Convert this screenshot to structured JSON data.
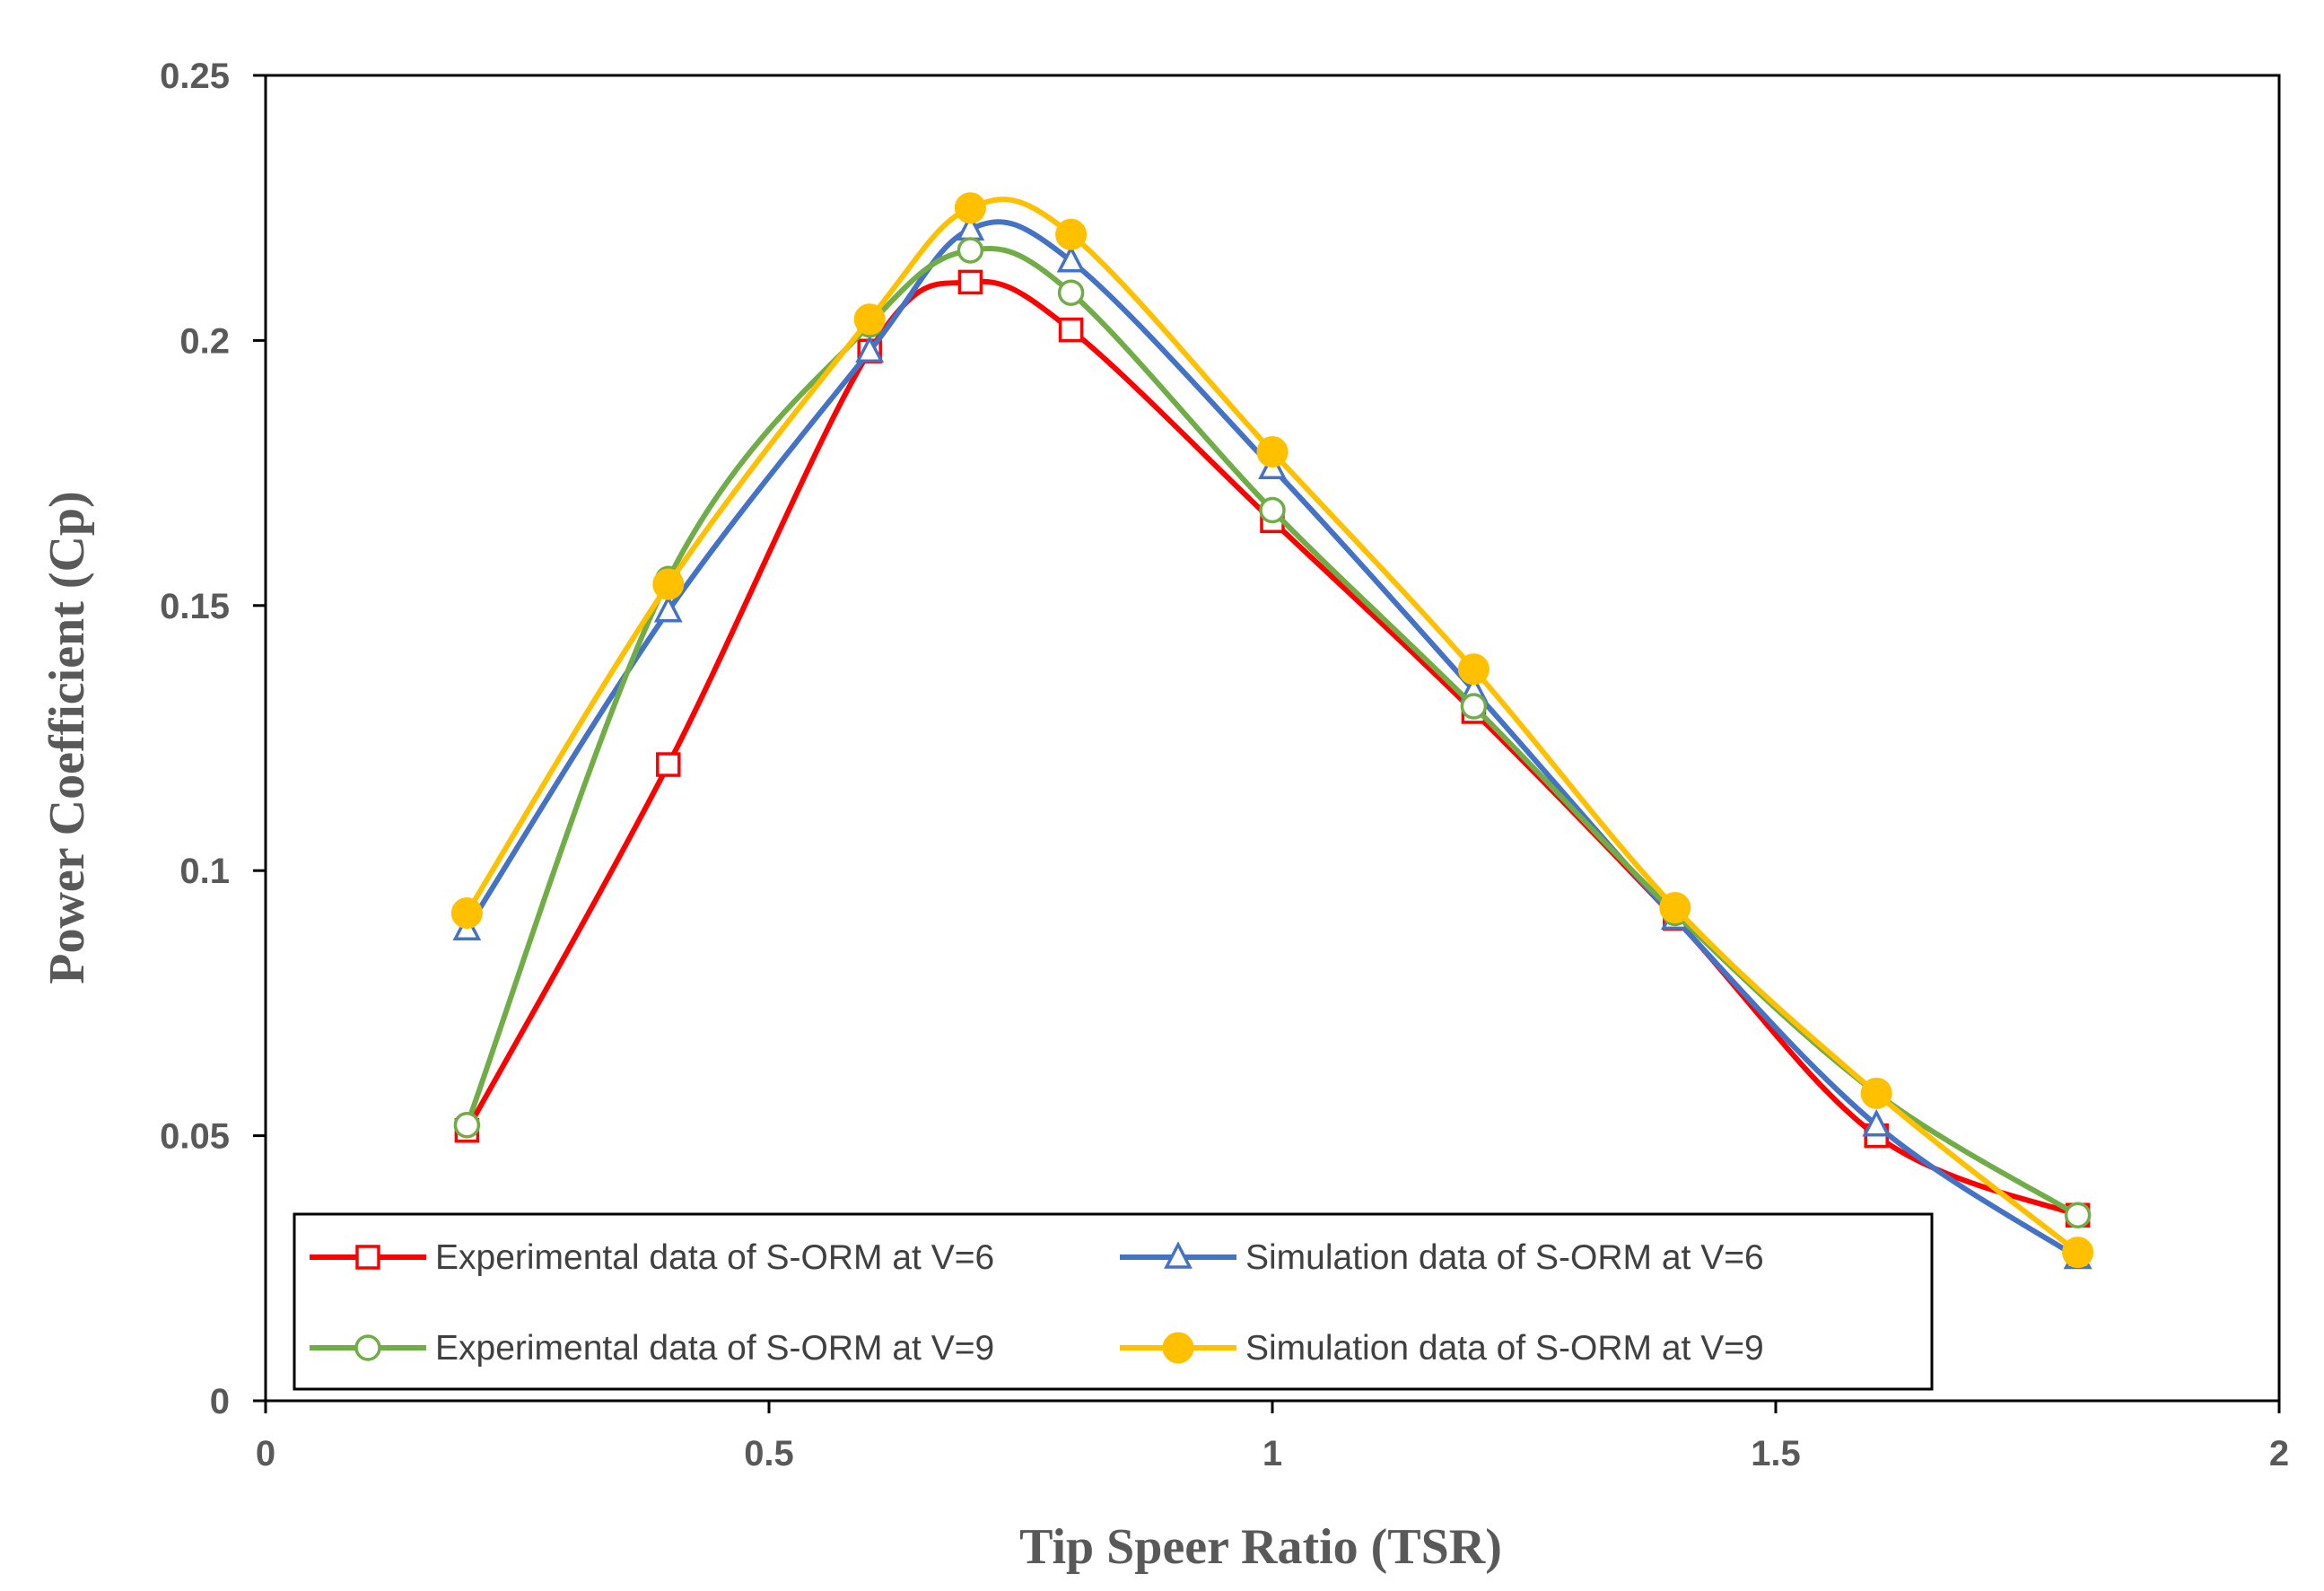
{
  "chart_data": {
    "type": "line",
    "smooth": true,
    "title": "",
    "xlabel": "Tip Speer Ratio (TSR)",
    "ylabel": "Power Coefficient (Cp)",
    "xlim": [
      0,
      2
    ],
    "ylim": [
      0,
      0.25
    ],
    "x_ticks": [
      0,
      0.5,
      1,
      1.5,
      2
    ],
    "x_tick_labels": [
      "0",
      "0.5",
      "1",
      "1.5",
      "2"
    ],
    "y_ticks": [
      0,
      0.05,
      0.1,
      0.15,
      0.2,
      0.25
    ],
    "y_tick_labels": [
      "0",
      "0.05",
      "0.1",
      "0.15",
      "0.2",
      "0.25"
    ],
    "grid": false,
    "legend_position": "bottom-inside",
    "x": [
      0.2,
      0.4,
      0.6,
      0.7,
      0.8,
      1.0,
      1.2,
      1.4,
      1.6,
      1.8
    ],
    "series": [
      {
        "name": "Experimental data of S-ORM at V=6",
        "color": "#ff0000",
        "marker": "square-open",
        "values": [
          0.051,
          0.12,
          0.198,
          0.211,
          0.202,
          0.166,
          0.13,
          0.091,
          0.05,
          0.035
        ]
      },
      {
        "name": "Simulation data of S-ORM at V=6",
        "color": "#4472c4",
        "marker": "triangle-open",
        "values": [
          0.089,
          0.149,
          0.198,
          0.221,
          0.215,
          0.176,
          0.134,
          0.091,
          0.052,
          0.027
        ]
      },
      {
        "name": "Experimental data of S-ORM at V=9",
        "color": "#70ad47",
        "marker": "circle-open",
        "values": [
          0.052,
          0.155,
          0.203,
          0.217,
          0.209,
          0.168,
          0.131,
          0.092,
          0.058,
          0.035
        ]
      },
      {
        "name": "Simulation data of S-ORM at V=9",
        "color": "#ffc000",
        "marker": "circle-filled",
        "values": [
          0.092,
          0.154,
          0.204,
          0.225,
          0.22,
          0.179,
          0.138,
          0.093,
          0.058,
          0.028
        ]
      }
    ]
  }
}
